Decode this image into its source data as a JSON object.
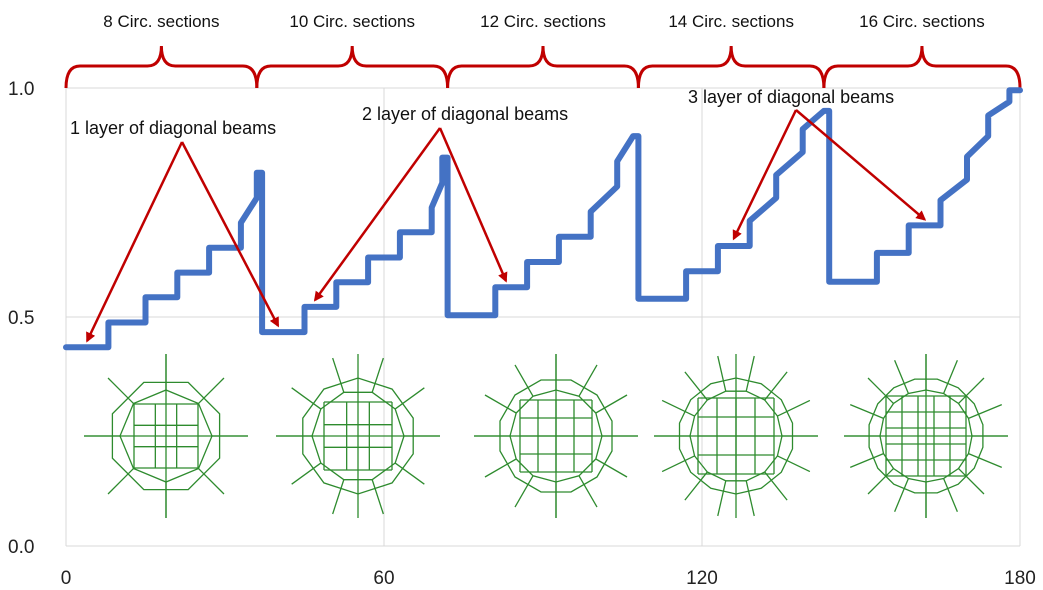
{
  "chart_data": {
    "type": "line",
    "xlim": [
      0,
      180
    ],
    "ylim": [
      0.0,
      1.0
    ],
    "x_ticks": [
      "0",
      "60",
      "120",
      "180"
    ],
    "y_ticks": [
      "0.0",
      "0.5",
      "1.0"
    ],
    "grid": true,
    "series_color": "#4472c4",
    "series": [
      {
        "x": [
          0,
          8,
          8,
          15,
          15,
          21,
          21,
          27,
          27,
          33,
          33,
          36,
          36,
          37,
          37,
          45,
          45,
          51,
          51,
          57,
          57,
          63,
          63,
          69,
          69,
          71,
          71,
          72,
          72,
          81,
          81,
          87,
          87,
          93,
          93,
          99,
          99,
          104,
          104,
          107,
          107,
          108,
          108,
          117,
          117,
          123,
          123,
          129,
          129,
          134,
          134,
          139,
          139,
          143,
          143,
          144,
          144,
          153,
          153,
          159,
          159,
          165,
          165,
          170,
          170,
          174,
          174,
          178,
          178,
          180
        ],
        "y": [
          0.434,
          0.434,
          0.488,
          0.488,
          0.543,
          0.543,
          0.597,
          0.597,
          0.651,
          0.651,
          0.706,
          0.76,
          0.815,
          0.815,
          0.467,
          0.467,
          0.522,
          0.522,
          0.576,
          0.576,
          0.63,
          0.63,
          0.685,
          0.685,
          0.739,
          0.793,
          0.848,
          0.848,
          0.504,
          0.504,
          0.565,
          0.565,
          0.62,
          0.62,
          0.675,
          0.675,
          0.73,
          0.785,
          0.84,
          0.895,
          0.895,
          0.895,
          0.54,
          0.54,
          0.6,
          0.6,
          0.655,
          0.655,
          0.71,
          0.76,
          0.81,
          0.86,
          0.91,
          0.95,
          0.95,
          0.95,
          0.577,
          0.577,
          0.64,
          0.64,
          0.7,
          0.7,
          0.755,
          0.8,
          0.85,
          0.895,
          0.94,
          0.97,
          0.995,
          0.995
        ]
      }
    ],
    "sections": [
      {
        "label": "8 Circ. sections",
        "x_start": 0,
        "x_end": 36
      },
      {
        "label": "10 Circ. sections",
        "x_start": 36,
        "x_end": 72
      },
      {
        "label": "12 Circ. sections",
        "x_start": 72,
        "x_end": 108
      },
      {
        "label": "14 Circ. sections",
        "x_start": 108,
        "x_end": 143
      },
      {
        "label": "16 Circ. sections",
        "x_start": 143,
        "x_end": 180
      }
    ],
    "annotations": [
      {
        "text": "1 layer of diagonal beams",
        "targets": [
          [
            4,
            0.435
          ],
          [
            40,
            0.468
          ]
        ]
      },
      {
        "text": "2 layer of diagonal beams",
        "targets": [
          [
            47,
            0.524
          ],
          [
            83,
            0.566
          ]
        ]
      },
      {
        "text": "3 layer of diagonal beams",
        "targets": [
          [
            126,
            0.658
          ],
          [
            162,
            0.7
          ]
        ]
      }
    ],
    "annotation_color": "#c00000",
    "mesh_color": "#2e8b2e",
    "mesh_spokes": [
      8,
      10,
      12,
      14,
      16
    ]
  }
}
